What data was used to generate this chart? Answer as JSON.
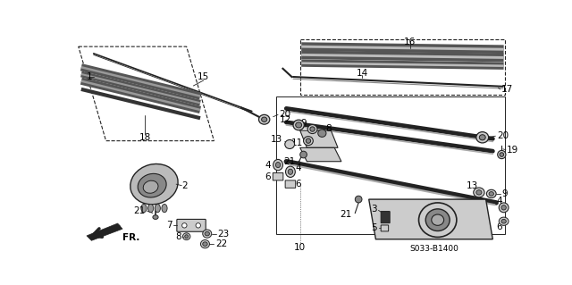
{
  "background_color": "#ffffff",
  "fig_width": 6.4,
  "fig_height": 3.19,
  "dpi": 100,
  "part_label_S": "S033-B1400",
  "text_color": "#000000",
  "dark": "#222222",
  "mid": "#888888",
  "light": "#cccccc"
}
